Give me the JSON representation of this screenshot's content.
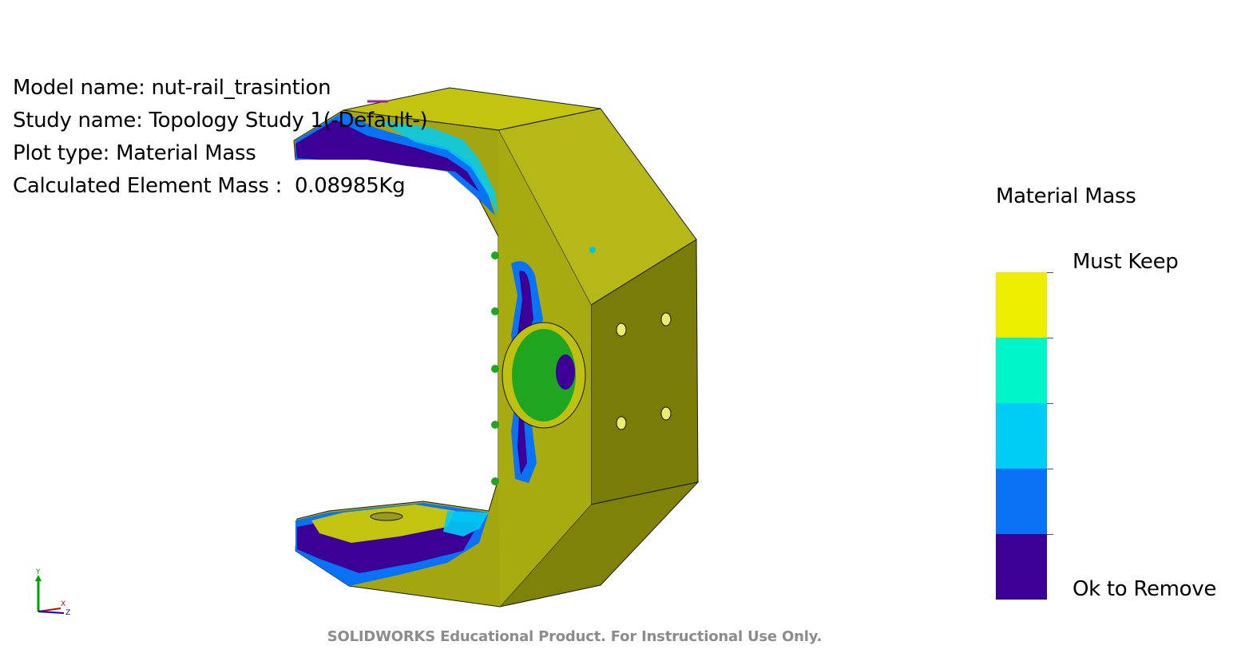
{
  "info": {
    "model_name": "Model name: nut-rail_trasintion",
    "study_name": "Study name: Topology Study 1(-Default-)",
    "plot_type": "Plot type: Material Mass",
    "element_mass": "Calculated Element Mass :  0.08985Kg"
  },
  "legend": {
    "title": "Material Mass",
    "max_label": "Must Keep",
    "min_label": "Ok to Remove",
    "bands": [
      "#eded00",
      "#00f5c8",
      "#00cdf5",
      "#0a73f5",
      "#3c0096"
    ]
  },
  "triad": {
    "y_label": "Y",
    "x_label": "X",
    "z_label": "Z"
  },
  "watermark": "SOLIDWORKS Educational Product. For Instructional Use Only.",
  "colors": {
    "body_front": "#a9ad10",
    "body_top": "#bfbf12",
    "body_side": "#7a7d0a",
    "keep": "#c3c40f",
    "remove": "#3c0096",
    "fixture": "#1fa51f"
  }
}
